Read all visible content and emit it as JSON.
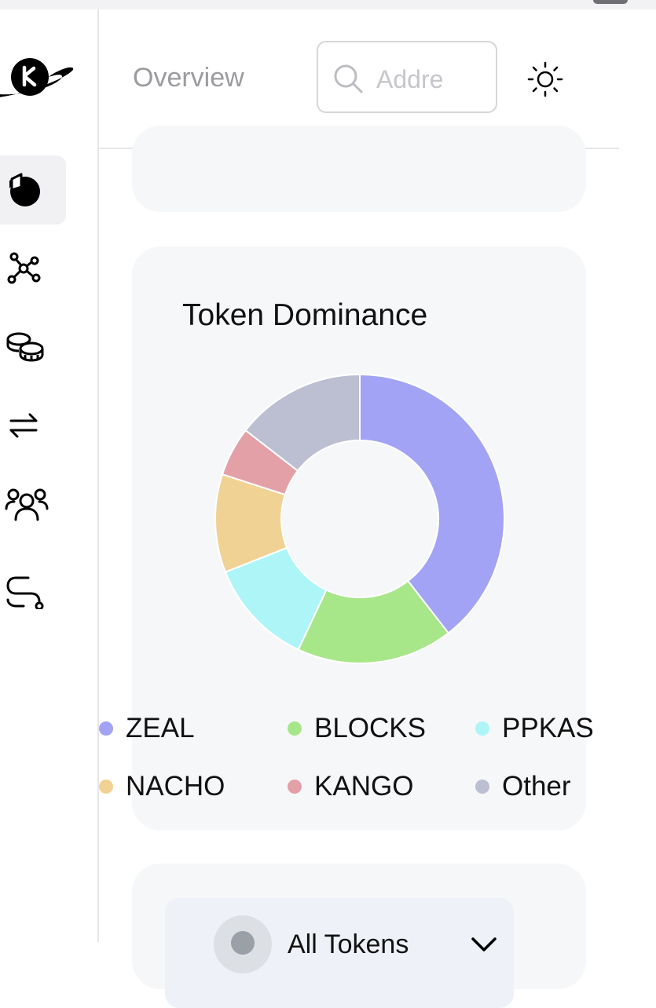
{
  "header": {
    "title": "Overview",
    "search_placeholder": "Address"
  },
  "sidebar": {
    "items": [
      {
        "name": "overview",
        "icon": "pie-chart-icon",
        "active": true
      },
      {
        "name": "network",
        "icon": "network-icon"
      },
      {
        "name": "tokens",
        "icon": "coins-icon"
      },
      {
        "name": "transactions",
        "icon": "transfer-arrows-icon"
      },
      {
        "name": "holders",
        "icon": "users-icon"
      },
      {
        "name": "routes",
        "icon": "route-icon"
      }
    ]
  },
  "dominance": {
    "title": "Token Dominance",
    "legend": [
      {
        "label": "ZEAL",
        "color": "#a2a3f5"
      },
      {
        "label": "BLOCKS",
        "color": "#a8e68a"
      },
      {
        "label": "PPKAS",
        "color": "#aef5f7"
      },
      {
        "label": "NACHO",
        "color": "#f1d295"
      },
      {
        "label": "KANGO",
        "color": "#e3a1a7"
      },
      {
        "label": "Other",
        "color": "#bcbfd2"
      }
    ]
  },
  "chart_data": {
    "type": "pie",
    "title": "Token Dominance",
    "categories": [
      "ZEAL",
      "BLOCKS",
      "PPKAS",
      "NACHO",
      "KANGO",
      "Other"
    ],
    "values": [
      39.5,
      17.5,
      12,
      11,
      5.5,
      14.5
    ],
    "colors": [
      "#a2a3f5",
      "#a8e68a",
      "#aef5f7",
      "#f1d295",
      "#e3a1a7",
      "#bcbfd2"
    ],
    "legend": "bottom"
  },
  "token_selector": {
    "label": "All Tokens"
  }
}
